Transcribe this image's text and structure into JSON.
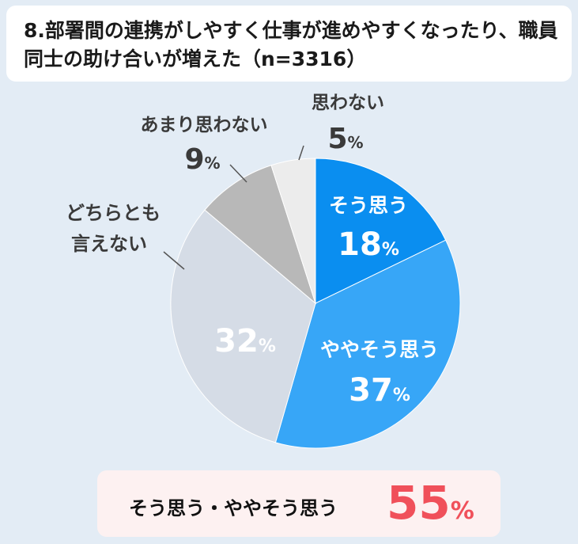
{
  "chart_data": {
    "type": "pie",
    "title": "8.部署間の連携がしやすく仕事が進めやすくなったり、職員同士の助け合いが増えた（n=3316）",
    "unit": "%",
    "slices": [
      {
        "label": "そう思う",
        "value": 18,
        "color": "#0a8ef0"
      },
      {
        "label": "ややそう思う",
        "value": 37,
        "color": "#37a6f7"
      },
      {
        "label": "どちらとも言えない",
        "value": 32,
        "color": "#d5dce6"
      },
      {
        "label": "あまり思わない",
        "value": 9,
        "color": "#b8b8b8"
      },
      {
        "label": "思わない",
        "value": 5,
        "color": "#ececec"
      }
    ]
  },
  "summary": {
    "label": "そう思う・ややそう思う",
    "value": "55",
    "unit": "%"
  }
}
